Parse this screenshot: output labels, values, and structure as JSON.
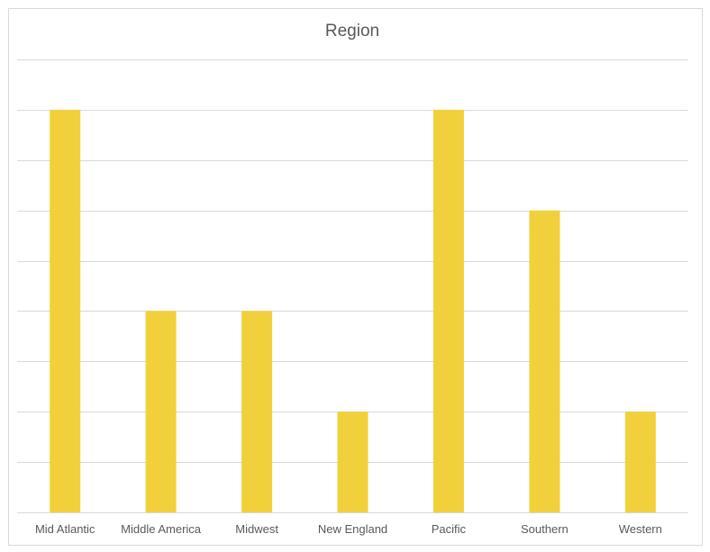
{
  "chart_data": {
    "type": "bar",
    "title": "Region",
    "categories": [
      "Mid Atlantic",
      "Middle America",
      "Midwest",
      "New England",
      "Pacific",
      "Southern",
      "Western"
    ],
    "values": [
      8,
      4,
      4,
      2,
      8,
      6,
      2
    ],
    "ylim": [
      0,
      9
    ],
    "grid": true,
    "y_axis_labels_shown": false,
    "colors": {
      "bar": "#F2D03B",
      "grid": "#d9d9d9",
      "text": "#595959",
      "frame": "#d9d9d9"
    }
  }
}
